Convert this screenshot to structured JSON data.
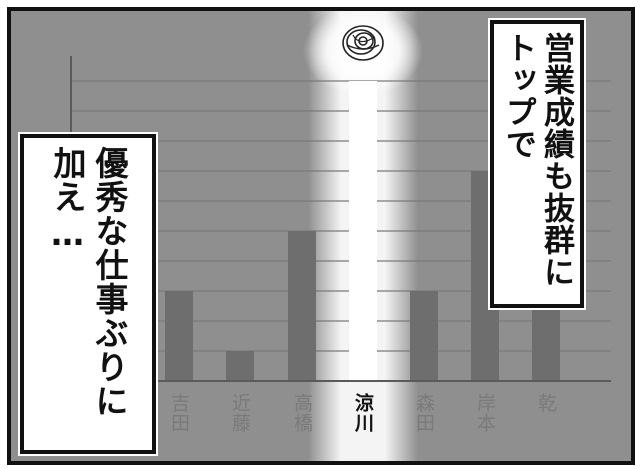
{
  "caption_right": "営業成績も抜群にトップで",
  "caption_left": "優秀な仕事ぶりに加え…",
  "chart_data": {
    "type": "bar",
    "categories": [
      "吉田",
      "近藤",
      "高橋",
      "涼川",
      "森田",
      "岸本",
      "乾"
    ],
    "values": [
      3,
      1,
      5,
      10,
      3,
      7,
      3
    ],
    "highlight": "涼川",
    "grid": true,
    "colors": {
      "bar": "#6e6e6e",
      "highlight_bar": "#ffffff",
      "background": "#8f8f8f",
      "grid": "#7a7a7a"
    }
  }
}
